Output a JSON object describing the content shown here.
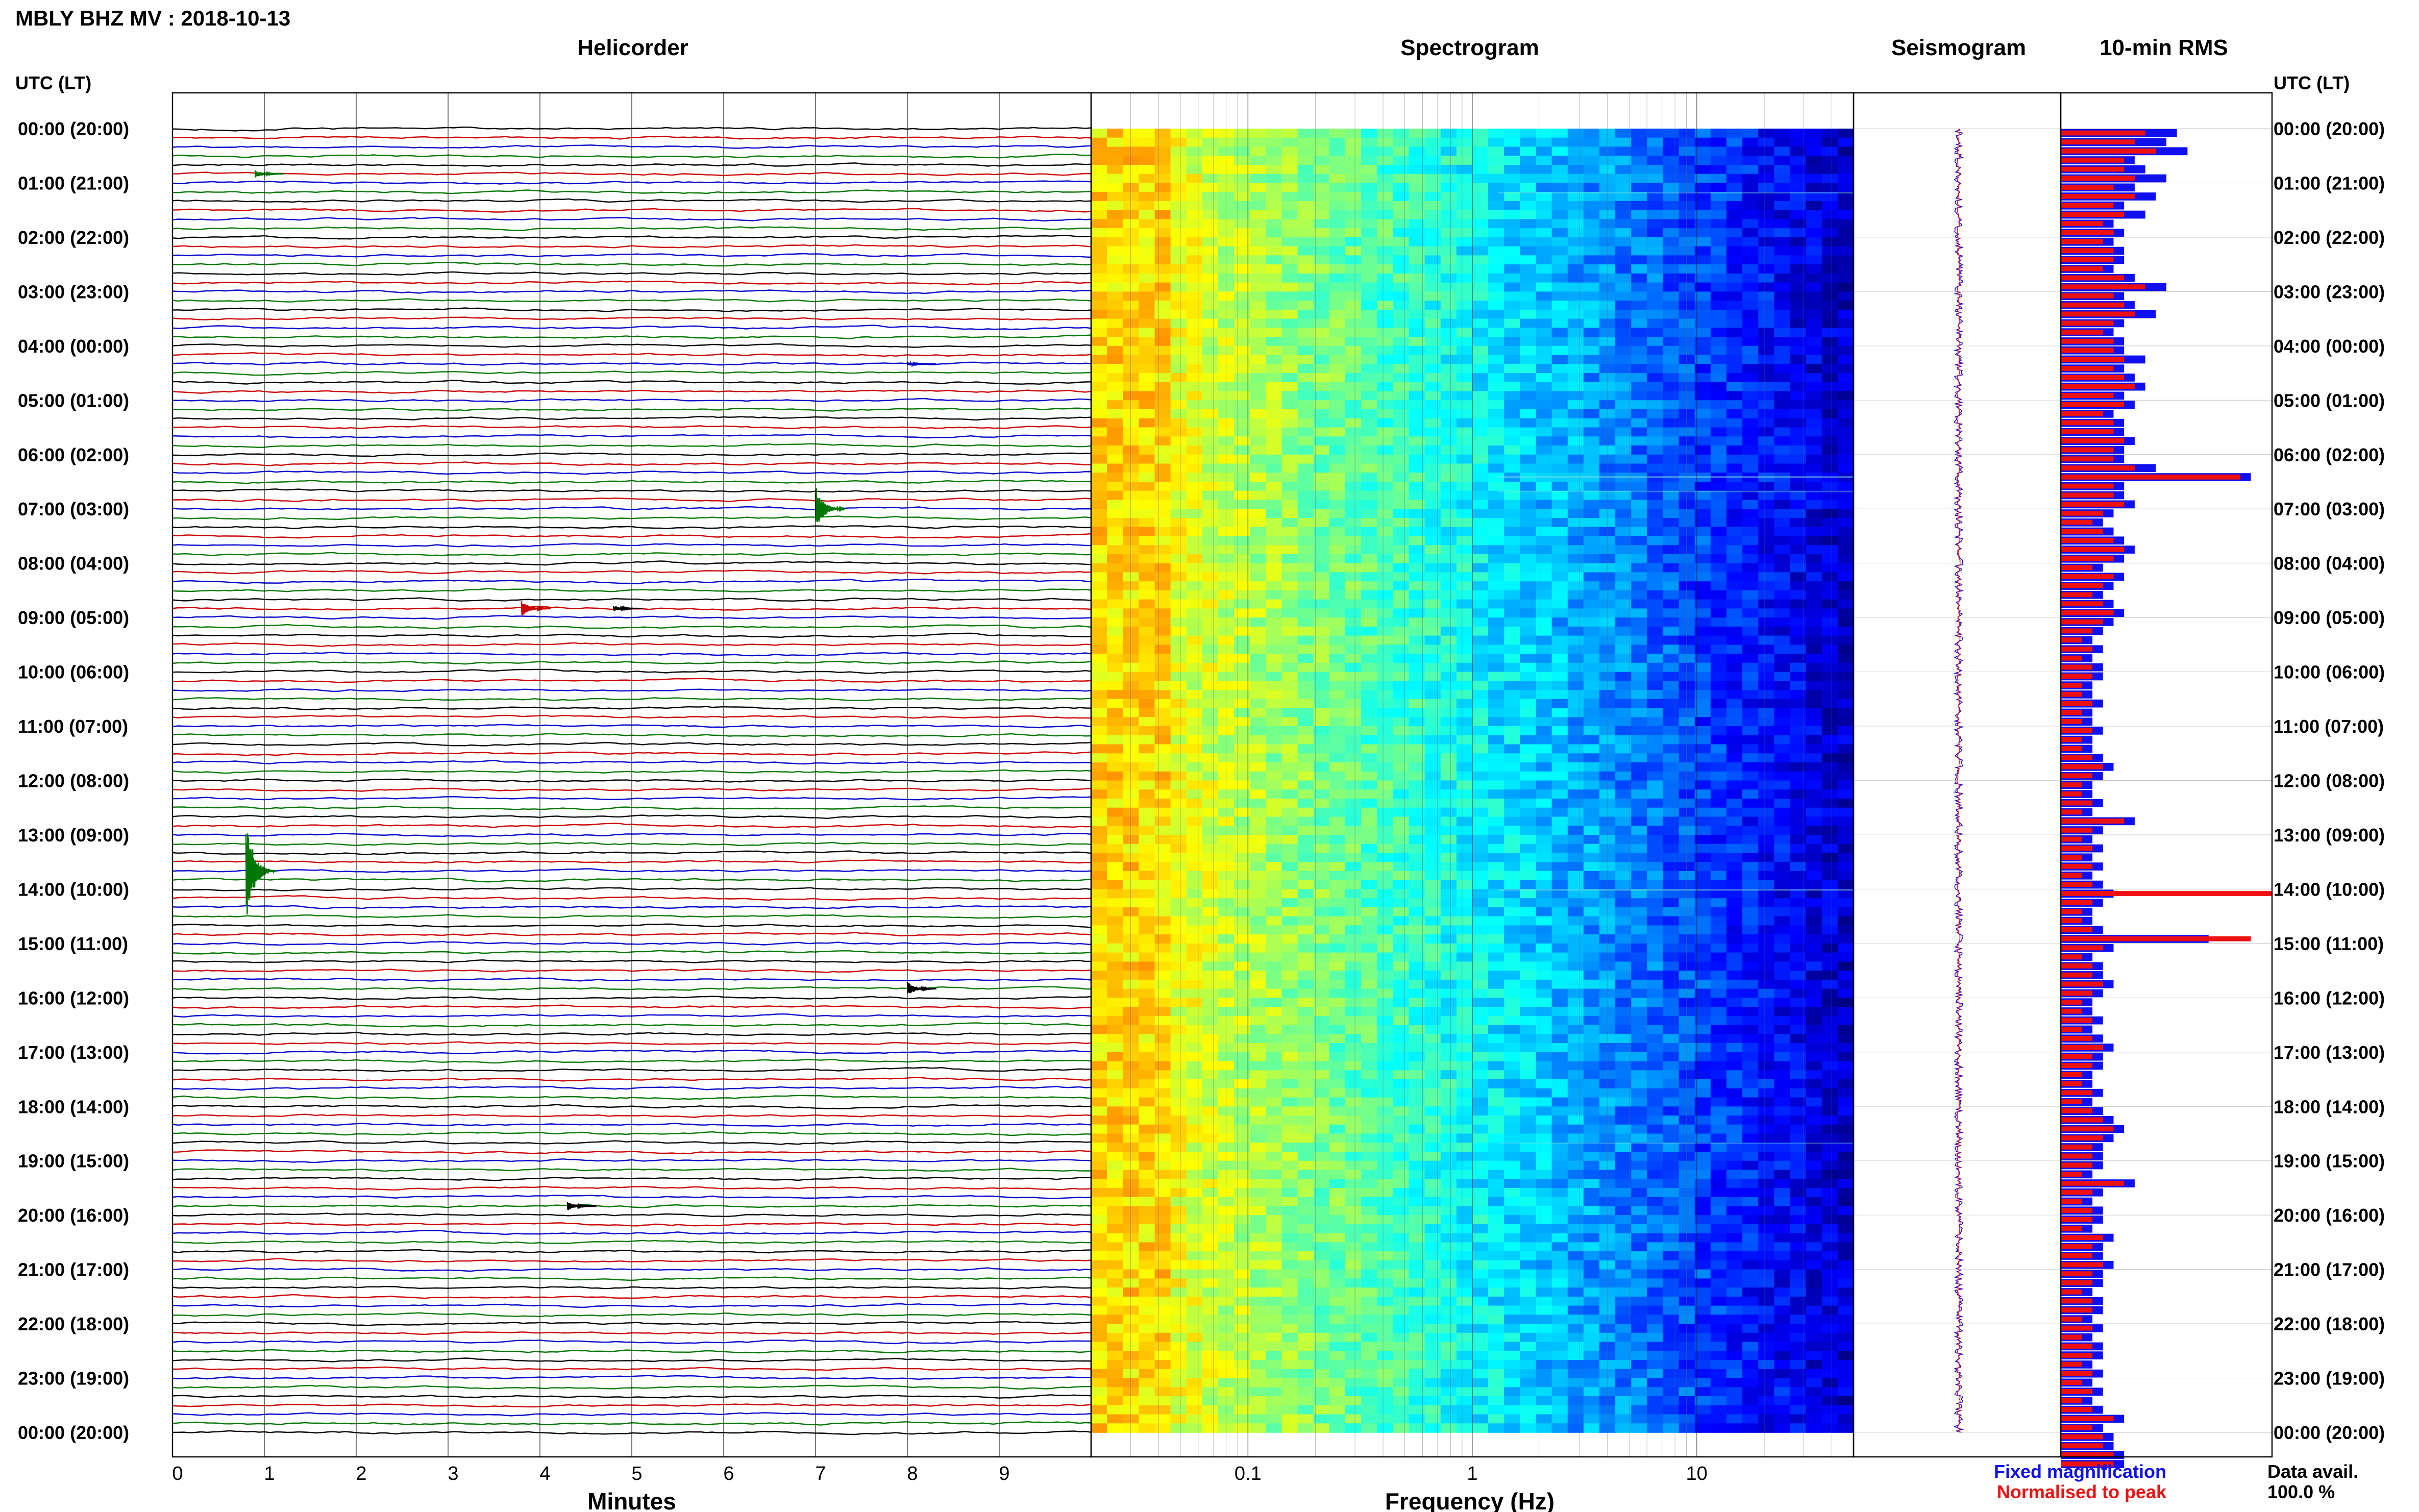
{
  "header": {
    "title": "MBLY BHZ MV : 2018-10-13"
  },
  "panels": {
    "helicorder": "Helicorder",
    "spectrogram": "Spectrogram",
    "seismogram": "Seismogram",
    "rms": "10-min RMS"
  },
  "axes": {
    "time_header_left": "UTC (LT)",
    "time_header_right": "UTC (LT)",
    "time_labels": [
      "00:00 (20:00)",
      "01:00 (21:00)",
      "02:00 (22:00)",
      "03:00 (23:00)",
      "04:00 (00:00)",
      "05:00 (01:00)",
      "06:00 (02:00)",
      "07:00 (03:00)",
      "08:00 (04:00)",
      "09:00 (05:00)",
      "10:00 (06:00)",
      "11:00 (07:00)",
      "12:00 (08:00)",
      "13:00 (09:00)",
      "14:00 (10:00)",
      "15:00 (11:00)",
      "16:00 (12:00)",
      "17:00 (13:00)",
      "18:00 (14:00)",
      "19:00 (15:00)",
      "20:00 (16:00)",
      "21:00 (17:00)",
      "22:00 (18:00)",
      "23:00 (19:00)",
      "00:00 (20:00)"
    ],
    "minutes_xlabel": "Minutes",
    "minutes_ticks": [
      "0",
      "1",
      "2",
      "3",
      "4",
      "5",
      "6",
      "7",
      "8",
      "9"
    ],
    "freq_xlabel": "Frequency (Hz)",
    "freq_ticks": [
      "0.1",
      "1",
      "10"
    ]
  },
  "legend": {
    "fixed": "Fixed magnification",
    "normalised": "Normalised to peak",
    "fixed_color": "#1010ee",
    "normalised_color": "#ee1010",
    "avail_label": "Data avail.",
    "avail_value": "100.0 %"
  },
  "colors": {
    "trace_cycle": [
      "#000000",
      "#cc0000",
      "#0000cc",
      "#007700"
    ]
  },
  "chart_data": {
    "type": "helicorder",
    "minutes_range": [
      0,
      10
    ],
    "frequency_range_hz": [
      0.02,
      50
    ],
    "frequency_scale": "log",
    "lines_per_hour": 6,
    "events": [
      {
        "time": "00:50",
        "minute": 0.9,
        "amplitude": 0.45,
        "color": "green"
      },
      {
        "time": "04:20",
        "minute": 8.0,
        "amplitude": 0.2,
        "color": "blue"
      },
      {
        "time": "07:00",
        "minute": 7.0,
        "amplitude": 2.6,
        "color": "green"
      },
      {
        "time": "08:50",
        "minute": 3.8,
        "amplitude": 0.9,
        "color": "red"
      },
      {
        "time": "08:50",
        "minute": 4.8,
        "amplitude": 0.35,
        "color": "black"
      },
      {
        "time": "13:40",
        "minute": 0.8,
        "amplitude": 6.0,
        "color": "green"
      },
      {
        "time": "15:50",
        "minute": 8.0,
        "amplitude": 0.8,
        "color": "black"
      },
      {
        "time": "19:50",
        "minute": 4.3,
        "amplitude": 0.5,
        "color": "black"
      }
    ],
    "rms_fixed": [
      0.55,
      0.5,
      0.6,
      0.35,
      0.4,
      0.5,
      0.35,
      0.45,
      0.3,
      0.4,
      0.25,
      0.3,
      0.25,
      0.3,
      0.3,
      0.25,
      0.35,
      0.5,
      0.3,
      0.35,
      0.45,
      0.3,
      0.25,
      0.3,
      0.3,
      0.4,
      0.3,
      0.35,
      0.4,
      0.3,
      0.35,
      0.25,
      0.3,
      0.3,
      0.35,
      0.3,
      0.3,
      0.45,
      0.9,
      0.3,
      0.3,
      0.35,
      0.25,
      0.2,
      0.25,
      0.3,
      0.35,
      0.3,
      0.2,
      0.3,
      0.25,
      0.2,
      0.25,
      0.3,
      0.25,
      0.2,
      0.15,
      0.2,
      0.15,
      0.2,
      0.2,
      0.15,
      0.15,
      0.2,
      0.15,
      0.15,
      0.2,
      0.15,
      0.15,
      0.2,
      0.25,
      0.2,
      0.15,
      0.15,
      0.2,
      0.15,
      0.35,
      0.2,
      0.15,
      0.2,
      0.15,
      0.2,
      0.15,
      0.2,
      0.25,
      0.2,
      0.15,
      0.15,
      0.2,
      0.7,
      0.25,
      0.15,
      0.2,
      0.2,
      0.25,
      0.2,
      0.15,
      0.15,
      0.2,
      0.15,
      0.2,
      0.25,
      0.2,
      0.2,
      0.15,
      0.15,
      0.2,
      0.15,
      0.2,
      0.25,
      0.3,
      0.25,
      0.2,
      0.2,
      0.2,
      0.15,
      0.35,
      0.2,
      0.15,
      0.2,
      0.2,
      0.15,
      0.25,
      0.2,
      0.2,
      0.25,
      0.2,
      0.2,
      0.15,
      0.2,
      0.2,
      0.15,
      0.2,
      0.15,
      0.2,
      0.2,
      0.15,
      0.2,
      0.15,
      0.2,
      0.15,
      0.2,
      0.3,
      0.2,
      0.25,
      0.25,
      0.3,
      0.3
    ],
    "rms_normalised": [
      0.4,
      0.35,
      0.45,
      0.3,
      0.3,
      0.35,
      0.25,
      0.35,
      0.25,
      0.3,
      0.2,
      0.25,
      0.2,
      0.25,
      0.25,
      0.2,
      0.3,
      0.4,
      0.25,
      0.3,
      0.35,
      0.25,
      0.2,
      0.25,
      0.25,
      0.3,
      0.25,
      0.3,
      0.35,
      0.25,
      0.3,
      0.2,
      0.25,
      0.25,
      0.3,
      0.25,
      0.25,
      0.35,
      0.85,
      0.25,
      0.25,
      0.3,
      0.2,
      0.15,
      0.2,
      0.25,
      0.3,
      0.25,
      0.15,
      0.25,
      0.2,
      0.15,
      0.2,
      0.25,
      0.2,
      0.15,
      0.1,
      0.15,
      0.1,
      0.15,
      0.15,
      0.1,
      0.1,
      0.15,
      0.1,
      0.1,
      0.15,
      0.1,
      0.1,
      0.15,
      0.2,
      0.15,
      0.1,
      0.1,
      0.15,
      0.1,
      0.3,
      0.15,
      0.1,
      0.15,
      0.1,
      0.15,
      0.1,
      0.15,
      1.0,
      0.15,
      0.1,
      0.1,
      0.15,
      0.9,
      0.2,
      0.1,
      0.15,
      0.15,
      0.2,
      0.15,
      0.1,
      0.1,
      0.15,
      0.1,
      0.15,
      0.2,
      0.15,
      0.15,
      0.1,
      0.1,
      0.15,
      0.1,
      0.15,
      0.2,
      0.25,
      0.2,
      0.15,
      0.15,
      0.15,
      0.1,
      0.3,
      0.15,
      0.1,
      0.15,
      0.15,
      0.1,
      0.2,
      0.15,
      0.15,
      0.2,
      0.15,
      0.15,
      0.1,
      0.15,
      0.15,
      0.1,
      0.15,
      0.1,
      0.15,
      0.15,
      0.1,
      0.15,
      0.1,
      0.15,
      0.1,
      0.15,
      0.25,
      0.15,
      0.2,
      0.2,
      0.25,
      0.25
    ]
  }
}
